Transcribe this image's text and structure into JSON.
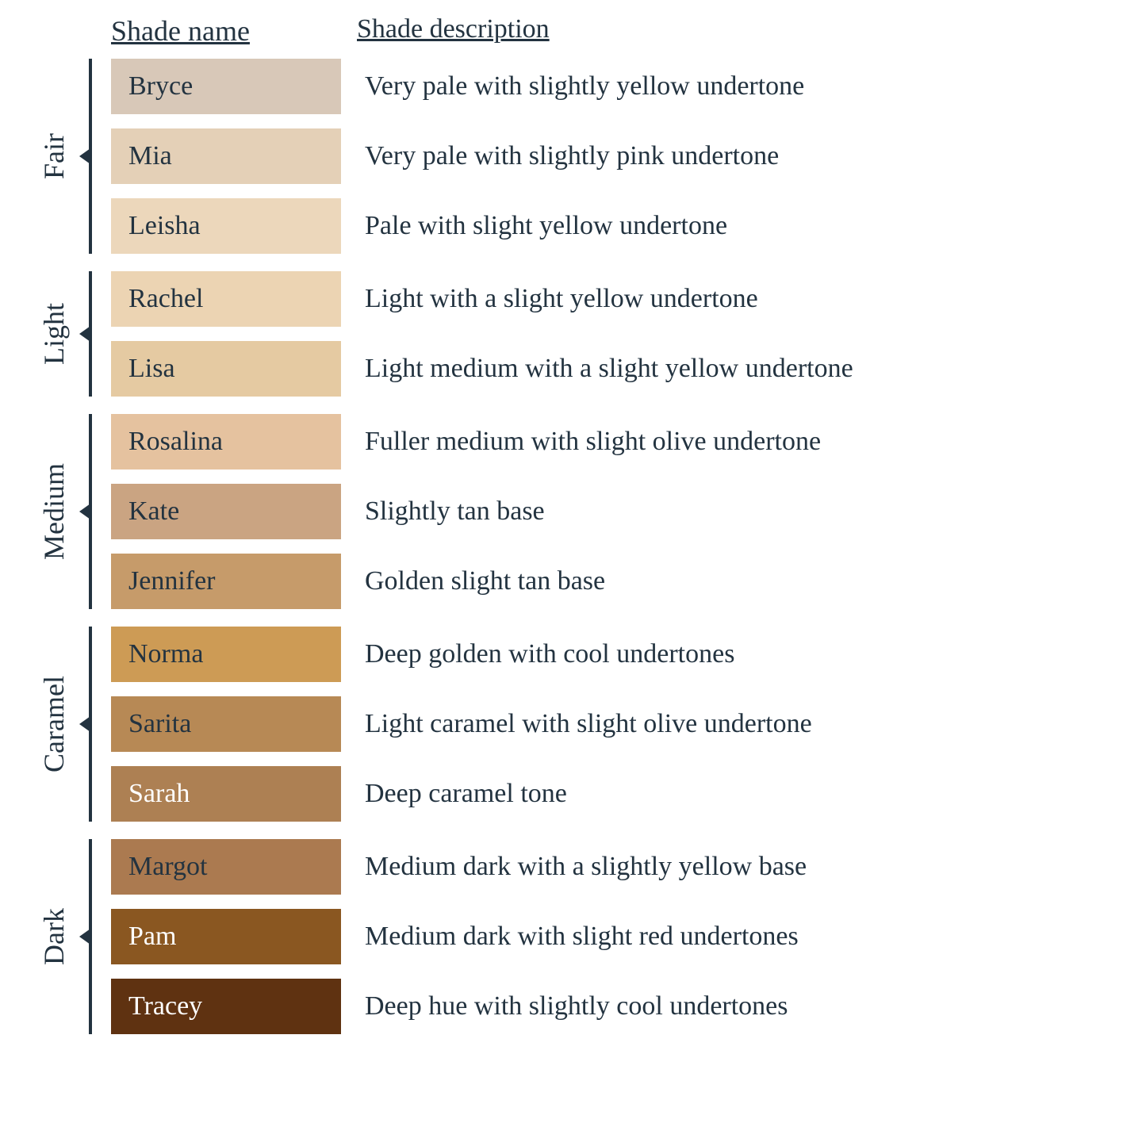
{
  "type": "infographic",
  "background_color": "#ffffff",
  "text_color": "#233340",
  "font_family": "Georgia, serif",
  "header_fontsize": 36,
  "label_fontsize": 36,
  "shade_name_fontsize": 34,
  "desc_fontsize": 34,
  "swatch_width": 290,
  "swatch_height": 70,
  "row_gap": 18,
  "group_gap": 22,
  "bracket_color": "#233340",
  "bracket_width": 4,
  "headers": {
    "name": "Shade name",
    "desc": "Shade description"
  },
  "groups": [
    {
      "label": "Fair",
      "shades": [
        {
          "name": "Bryce",
          "desc": "Very pale with slightly yellow undertone",
          "color": "#d8c8b8",
          "text_color": "#233340"
        },
        {
          "name": "Mia",
          "desc": "Very pale with slightly pink undertone",
          "color": "#e4d0b7",
          "text_color": "#233340"
        },
        {
          "name": "Leisha",
          "desc": "Pale with slight yellow undertone",
          "color": "#ecd7bb",
          "text_color": "#233340"
        }
      ]
    },
    {
      "label": "Light",
      "shades": [
        {
          "name": "Rachel",
          "desc": "Light with a slight yellow undertone",
          "color": "#ecd4b3",
          "text_color": "#233340"
        },
        {
          "name": "Lisa",
          "desc": "Light medium with a slight yellow undertone",
          "color": "#e5caa2",
          "text_color": "#233340"
        }
      ]
    },
    {
      "label": "Medium",
      "shades": [
        {
          "name": "Rosalina",
          "desc": "Fuller medium with slight olive undertone",
          "color": "#e5c29f",
          "text_color": "#233340"
        },
        {
          "name": "Kate",
          "desc": "Slightly tan base",
          "color": "#caa482",
          "text_color": "#233340"
        },
        {
          "name": "Jennifer",
          "desc": "Golden slight tan base",
          "color": "#c69b6a",
          "text_color": "#233340"
        }
      ]
    },
    {
      "label": "Caramel",
      "shades": [
        {
          "name": "Norma",
          "desc": "Deep golden with cool undertones",
          "color": "#cd9b55",
          "text_color": "#233340"
        },
        {
          "name": "Sarita",
          "desc": "Light caramel with slight olive undertone",
          "color": "#b78955",
          "text_color": "#233340"
        },
        {
          "name": "Sarah",
          "desc": "Deep caramel tone",
          "color": "#ad8053",
          "text_color": "#ffffff"
        }
      ]
    },
    {
      "label": "Dark",
      "shades": [
        {
          "name": "Margot",
          "desc": "Medium dark with a slightly yellow base",
          "color": "#ab7a50",
          "text_color": "#233340"
        },
        {
          "name": "Pam",
          "desc": "Medium dark with slight red undertones",
          "color": "#8a5721",
          "text_color": "#ffffff"
        },
        {
          "name": "Tracey",
          "desc": "Deep hue with slightly cool undertones",
          "color": "#5f3211",
          "text_color": "#ffffff"
        }
      ]
    }
  ]
}
